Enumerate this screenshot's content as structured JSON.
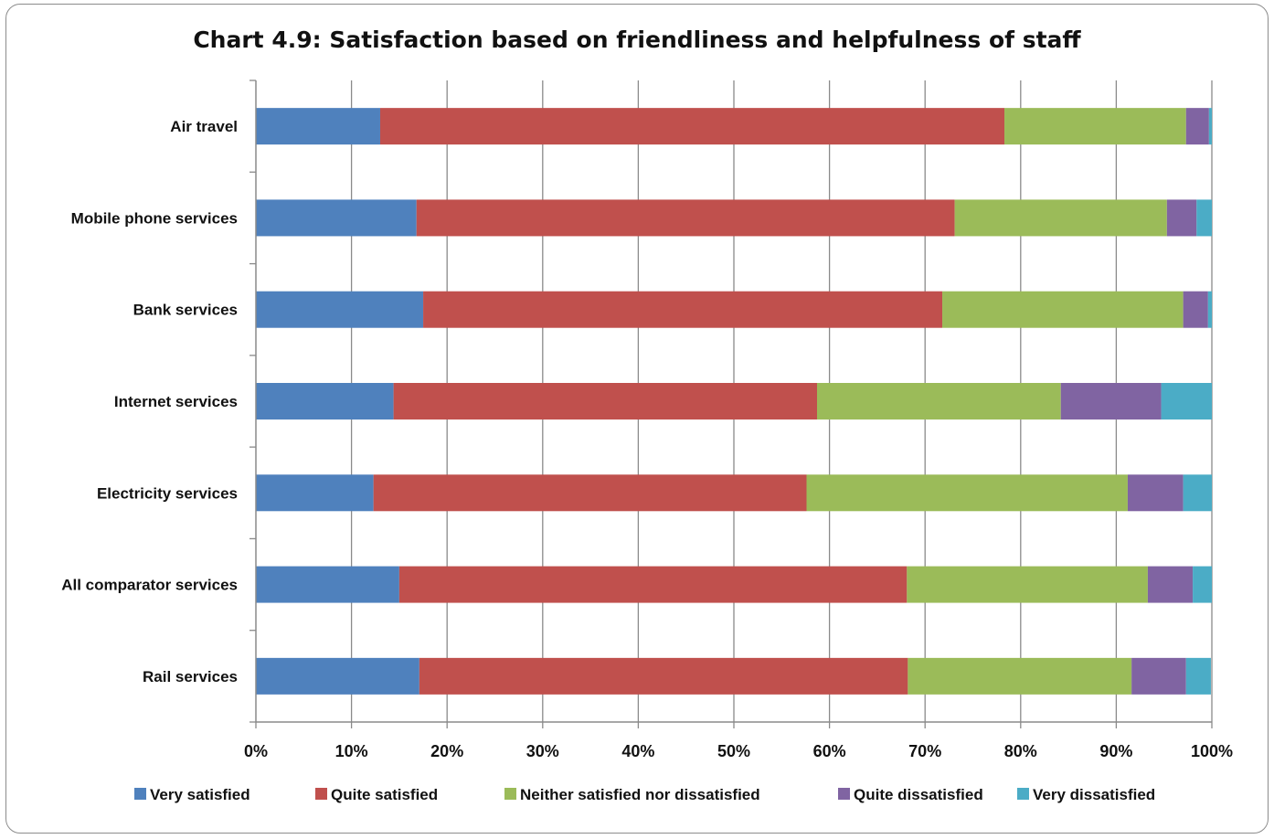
{
  "chart_data": {
    "type": "bar",
    "orientation": "horizontal",
    "stacked": true,
    "title": "Chart 4.9: Satisfaction based on friendliness and helpfulness of staff",
    "categories": [
      "Air travel",
      "Mobile phone services",
      "Bank services",
      "Internet services",
      "Electricity services",
      "All comparator services",
      "Rail services"
    ],
    "series": [
      {
        "name": "Very satisfied",
        "color": "#4F81BD",
        "values": [
          13.0,
          16.8,
          17.5,
          14.4,
          12.3,
          15.0,
          17.1
        ]
      },
      {
        "name": "Quite satisfied",
        "color": "#C0504D",
        "values": [
          65.3,
          56.3,
          54.3,
          44.3,
          45.3,
          53.1,
          51.1
        ]
      },
      {
        "name": "Neither satisfied nor dissatisfied",
        "color": "#9BBB59",
        "values": [
          19.0,
          22.2,
          25.2,
          25.5,
          33.6,
          25.2,
          23.4
        ]
      },
      {
        "name": "Quite dissatisfied",
        "color": "#8064A2",
        "values": [
          2.4,
          3.1,
          2.6,
          10.5,
          5.8,
          4.7,
          5.7
        ]
      },
      {
        "name": "Very dissatisfied",
        "color": "#4BACC6",
        "values": [
          0.3,
          1.6,
          0.4,
          5.3,
          3.0,
          2.0,
          2.6
        ]
      }
    ],
    "xlim": [
      0,
      100
    ],
    "xticks": [
      "0%",
      "10%",
      "20%",
      "30%",
      "40%",
      "50%",
      "60%",
      "70%",
      "80%",
      "90%",
      "100%"
    ],
    "grid": true,
    "legend": "bottom"
  }
}
